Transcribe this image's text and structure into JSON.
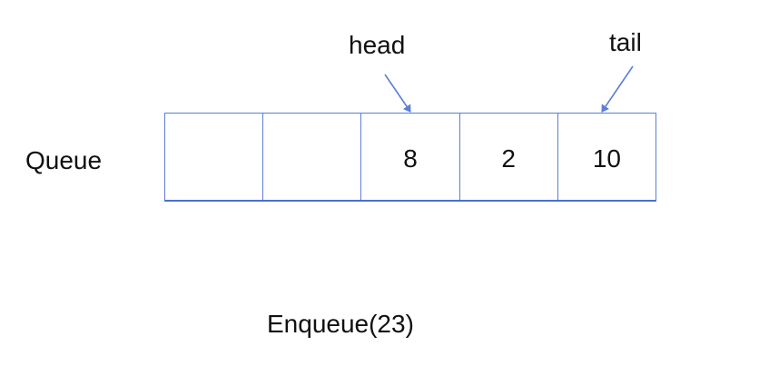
{
  "diagram": {
    "row_label": "Queue",
    "pointers": {
      "head": "head",
      "tail": "tail"
    },
    "cells": [
      "",
      "",
      "8",
      "2",
      "10"
    ],
    "operation": "Enqueue(23)",
    "colors": {
      "cell_border": "#5b7fd6",
      "arrow": "#5b7fd6",
      "text": "#111111"
    }
  }
}
